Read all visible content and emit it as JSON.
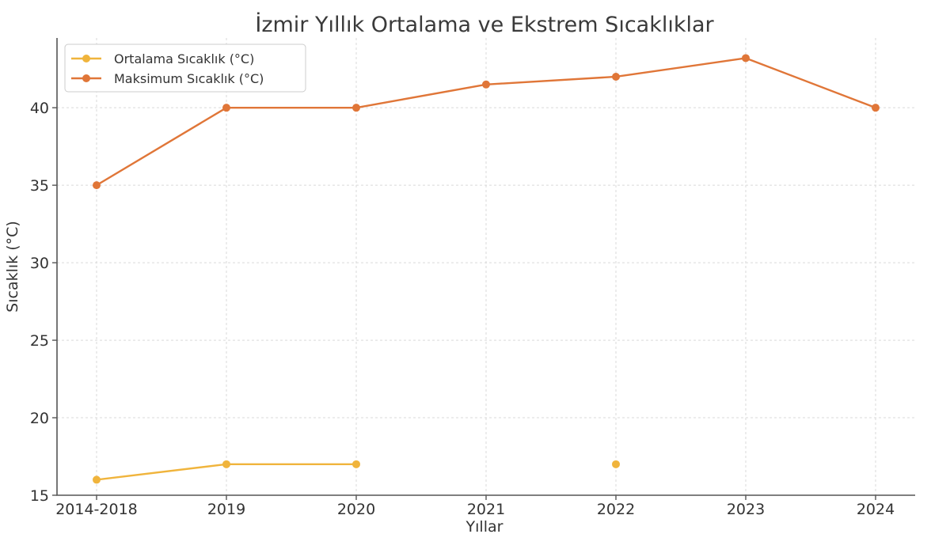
{
  "chart_data": {
    "type": "line",
    "title": "İzmir Yıllık Ortalama ve Ekstrem Sıcaklıklar",
    "xlabel": "Yıllar",
    "ylabel": "Sıcaklık (°C)",
    "categories": [
      "2014-2018",
      "2019",
      "2020",
      "2021",
      "2022",
      "2023",
      "2024"
    ],
    "y_ticks": [
      15,
      20,
      25,
      30,
      35,
      40
    ],
    "ylim": [
      15,
      44.5
    ],
    "grid": true,
    "legend_position": "top-left",
    "series": [
      {
        "name": "Ortalama Sıcaklık (°C)",
        "color": "#f0b43c",
        "values": [
          16,
          17,
          17,
          null,
          17,
          null,
          null
        ]
      },
      {
        "name": "Maksimum Sıcaklık (°C)",
        "color": "#e07638",
        "values": [
          35,
          40,
          40,
          41.5,
          42,
          43.2,
          40
        ]
      }
    ]
  }
}
